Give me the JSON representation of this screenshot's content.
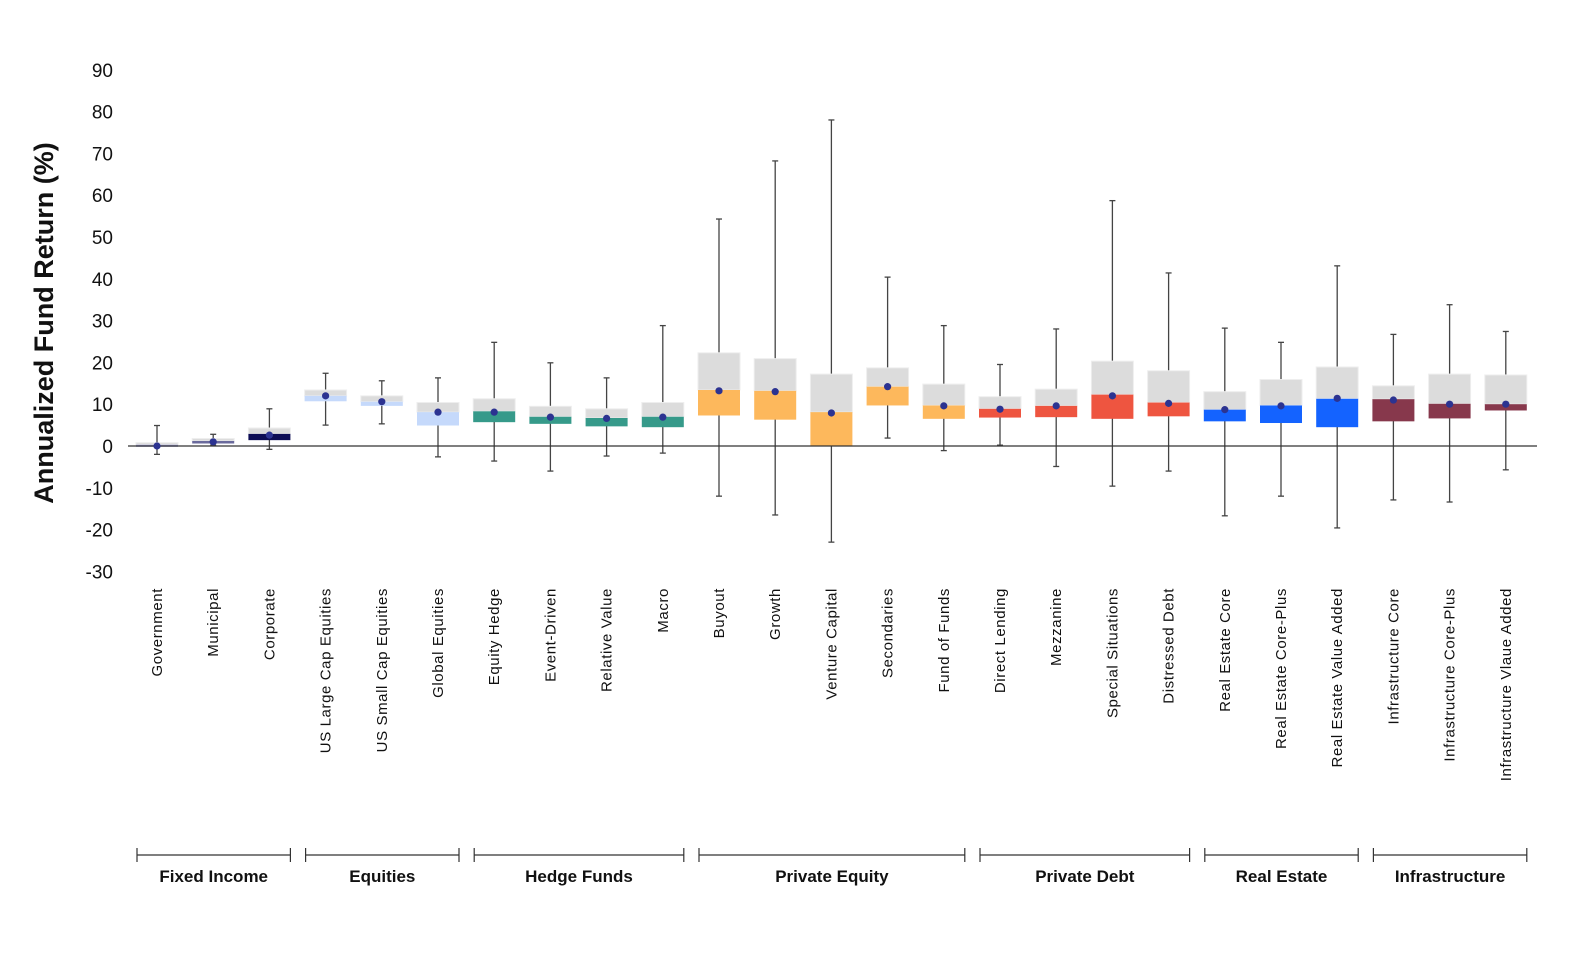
{
  "chart_data": {
    "type": "box",
    "title": "",
    "xlabel": "",
    "ylabel": "Annualized Fund Return (%)",
    "ylim": [
      -30,
      90
    ],
    "yticks": [
      90,
      80,
      70,
      60,
      50,
      40,
      30,
      20,
      10,
      0,
      -10,
      -20,
      -30
    ],
    "grid": false,
    "legend": "none",
    "box_upper_color": "#dcdcdc",
    "marker_color": "#2c3391",
    "groups": [
      {
        "name": "Fixed Income",
        "color": "#0d0d55"
      },
      {
        "name": "Equities",
        "color": "#c5d9fb"
      },
      {
        "name": "Hedge Funds",
        "color": "#369a8a"
      },
      {
        "name": "Private Equity",
        "color": "#fdb85c"
      },
      {
        "name": "Private Debt",
        "color": "#ee5540"
      },
      {
        "name": "Real Estate",
        "color": "#1463ff"
      },
      {
        "name": "Infrastructure",
        "color": "#87384c"
      }
    ],
    "categories": [
      {
        "label": "Government",
        "group": "Fixed Income",
        "color": "#9c9cd0",
        "min": -2,
        "q1": -0.2,
        "median": 0.3,
        "q3": 0.8,
        "max": 4.9,
        "marker": 0
      },
      {
        "label": "Municipal",
        "group": "Fixed Income",
        "color": "#6a6a9c",
        "min": 0.2,
        "q1": 0.6,
        "median": 1.2,
        "q3": 1.8,
        "max": 2.8,
        "marker": 1.0
      },
      {
        "label": "Corporate",
        "group": "Fixed Income",
        "color": "#0d0d55",
        "min": -0.8,
        "q1": 1.4,
        "median": 2.9,
        "q3": 4.3,
        "max": 8.9,
        "marker": 2.6
      },
      {
        "label": "US Large Cap Equities",
        "group": "Equities",
        "color": "#c5d9fb",
        "min": 5.0,
        "q1": 10.7,
        "median": 12.0,
        "q3": 13.4,
        "max": 17.4,
        "marker": 12.0
      },
      {
        "label": "US Small Cap Equities",
        "group": "Equities",
        "color": "#c5d9fb",
        "min": 5.3,
        "q1": 9.6,
        "median": 10.6,
        "q3": 12.0,
        "max": 15.6,
        "marker": 10.6
      },
      {
        "label": "Global Equities",
        "group": "Equities",
        "color": "#c5d9fb",
        "min": -2.6,
        "q1": 4.9,
        "median": 8.1,
        "q3": 10.4,
        "max": 16.3,
        "marker": 8.1
      },
      {
        "label": "Equity Hedge",
        "group": "Hedge Funds",
        "color": "#369a8a",
        "min": -3.6,
        "q1": 5.7,
        "median": 8.3,
        "q3": 11.3,
        "max": 24.8,
        "marker": 8.1
      },
      {
        "label": "Event-Driven",
        "group": "Hedge Funds",
        "color": "#369a8a",
        "min": -6.0,
        "q1": 5.3,
        "median": 7.0,
        "q3": 9.5,
        "max": 19.9,
        "marker": 6.9
      },
      {
        "label": "Relative Value",
        "group": "Hedge Funds",
        "color": "#369a8a",
        "min": -2.4,
        "q1": 4.7,
        "median": 6.7,
        "q3": 8.9,
        "max": 16.3,
        "marker": 6.6
      },
      {
        "label": "Macro",
        "group": "Hedge Funds",
        "color": "#369a8a",
        "min": -1.7,
        "q1": 4.5,
        "median": 7.0,
        "q3": 10.4,
        "max": 28.8,
        "marker": 6.9
      },
      {
        "label": "Buyout",
        "group": "Private Equity",
        "color": "#fdb85c",
        "min": -12.0,
        "q1": 7.3,
        "median": 13.4,
        "q3": 22.3,
        "max": 54.3,
        "marker": 13.2
      },
      {
        "label": "Growth",
        "group": "Private Equity",
        "color": "#fdb85c",
        "min": -16.5,
        "q1": 6.3,
        "median": 13.2,
        "q3": 20.9,
        "max": 68.2,
        "marker": 13.0
      },
      {
        "label": "Venture Capital",
        "group": "Private Equity",
        "color": "#fdb85c",
        "min": -23.0,
        "q1": 0,
        "median": 8.1,
        "q3": 17.2,
        "max": 78.0,
        "marker": 7.9
      },
      {
        "label": "Secondaries",
        "group": "Private Equity",
        "color": "#fdb85c",
        "min": 1.9,
        "q1": 9.7,
        "median": 14.2,
        "q3": 18.7,
        "max": 40.4,
        "marker": 14.2
      },
      {
        "label": "Fund of Funds",
        "group": "Private Equity",
        "color": "#fdb85c",
        "min": -1.1,
        "q1": 6.5,
        "median": 9.7,
        "q3": 14.8,
        "max": 28.8,
        "marker": 9.6
      },
      {
        "label": "Direct Lending",
        "group": "Private Debt",
        "color": "#ee5540",
        "min": 0.2,
        "q1": 6.8,
        "median": 8.9,
        "q3": 11.8,
        "max": 19.5,
        "marker": 8.8
      },
      {
        "label": "Mezzanine",
        "group": "Private Debt",
        "color": "#ee5540",
        "min": -4.9,
        "q1": 6.9,
        "median": 9.6,
        "q3": 13.6,
        "max": 28.0,
        "marker": 9.6
      },
      {
        "label": "Special Situations",
        "group": "Private Debt",
        "color": "#ee5540",
        "min": -9.6,
        "q1": 6.5,
        "median": 12.3,
        "q3": 20.3,
        "max": 58.7,
        "marker": 12.0
      },
      {
        "label": "Distressed Debt",
        "group": "Private Debt",
        "color": "#ee5540",
        "min": -6.0,
        "q1": 7.1,
        "median": 10.4,
        "q3": 18.0,
        "max": 41.4,
        "marker": 10.2
      },
      {
        "label": "Real Estate Core",
        "group": "Real Estate",
        "color": "#1463ff",
        "min": -16.7,
        "q1": 5.9,
        "median": 8.7,
        "q3": 13.0,
        "max": 28.2,
        "marker": 8.7
      },
      {
        "label": "Real Estate Core-Plus",
        "group": "Real Estate",
        "color": "#1463ff",
        "min": -12.0,
        "q1": 5.5,
        "median": 9.7,
        "q3": 15.9,
        "max": 24.8,
        "marker": 9.6
      },
      {
        "label": "Real Estate Value Added",
        "group": "Real Estate",
        "color": "#1463ff",
        "min": -19.6,
        "q1": 4.5,
        "median": 11.3,
        "q3": 18.9,
        "max": 43.1,
        "marker": 11.4
      },
      {
        "label": "Infrastructure Core",
        "group": "Infrastructure",
        "color": "#87384c",
        "min": -12.9,
        "q1": 5.9,
        "median": 11.2,
        "q3": 14.4,
        "max": 26.7,
        "marker": 11.0
      },
      {
        "label": "Infrastructure Core-Plus",
        "group": "Infrastructure",
        "color": "#87384c",
        "min": -13.4,
        "q1": 6.6,
        "median": 10.1,
        "q3": 17.2,
        "max": 33.8,
        "marker": 10.0
      },
      {
        "label": "Infrastructure Vlaue Added",
        "group": "Infrastructure",
        "color": "#87384c",
        "min": -5.7,
        "q1": 8.5,
        "median": 10.0,
        "q3": 17.0,
        "max": 27.4,
        "marker": 10.0
      }
    ]
  }
}
